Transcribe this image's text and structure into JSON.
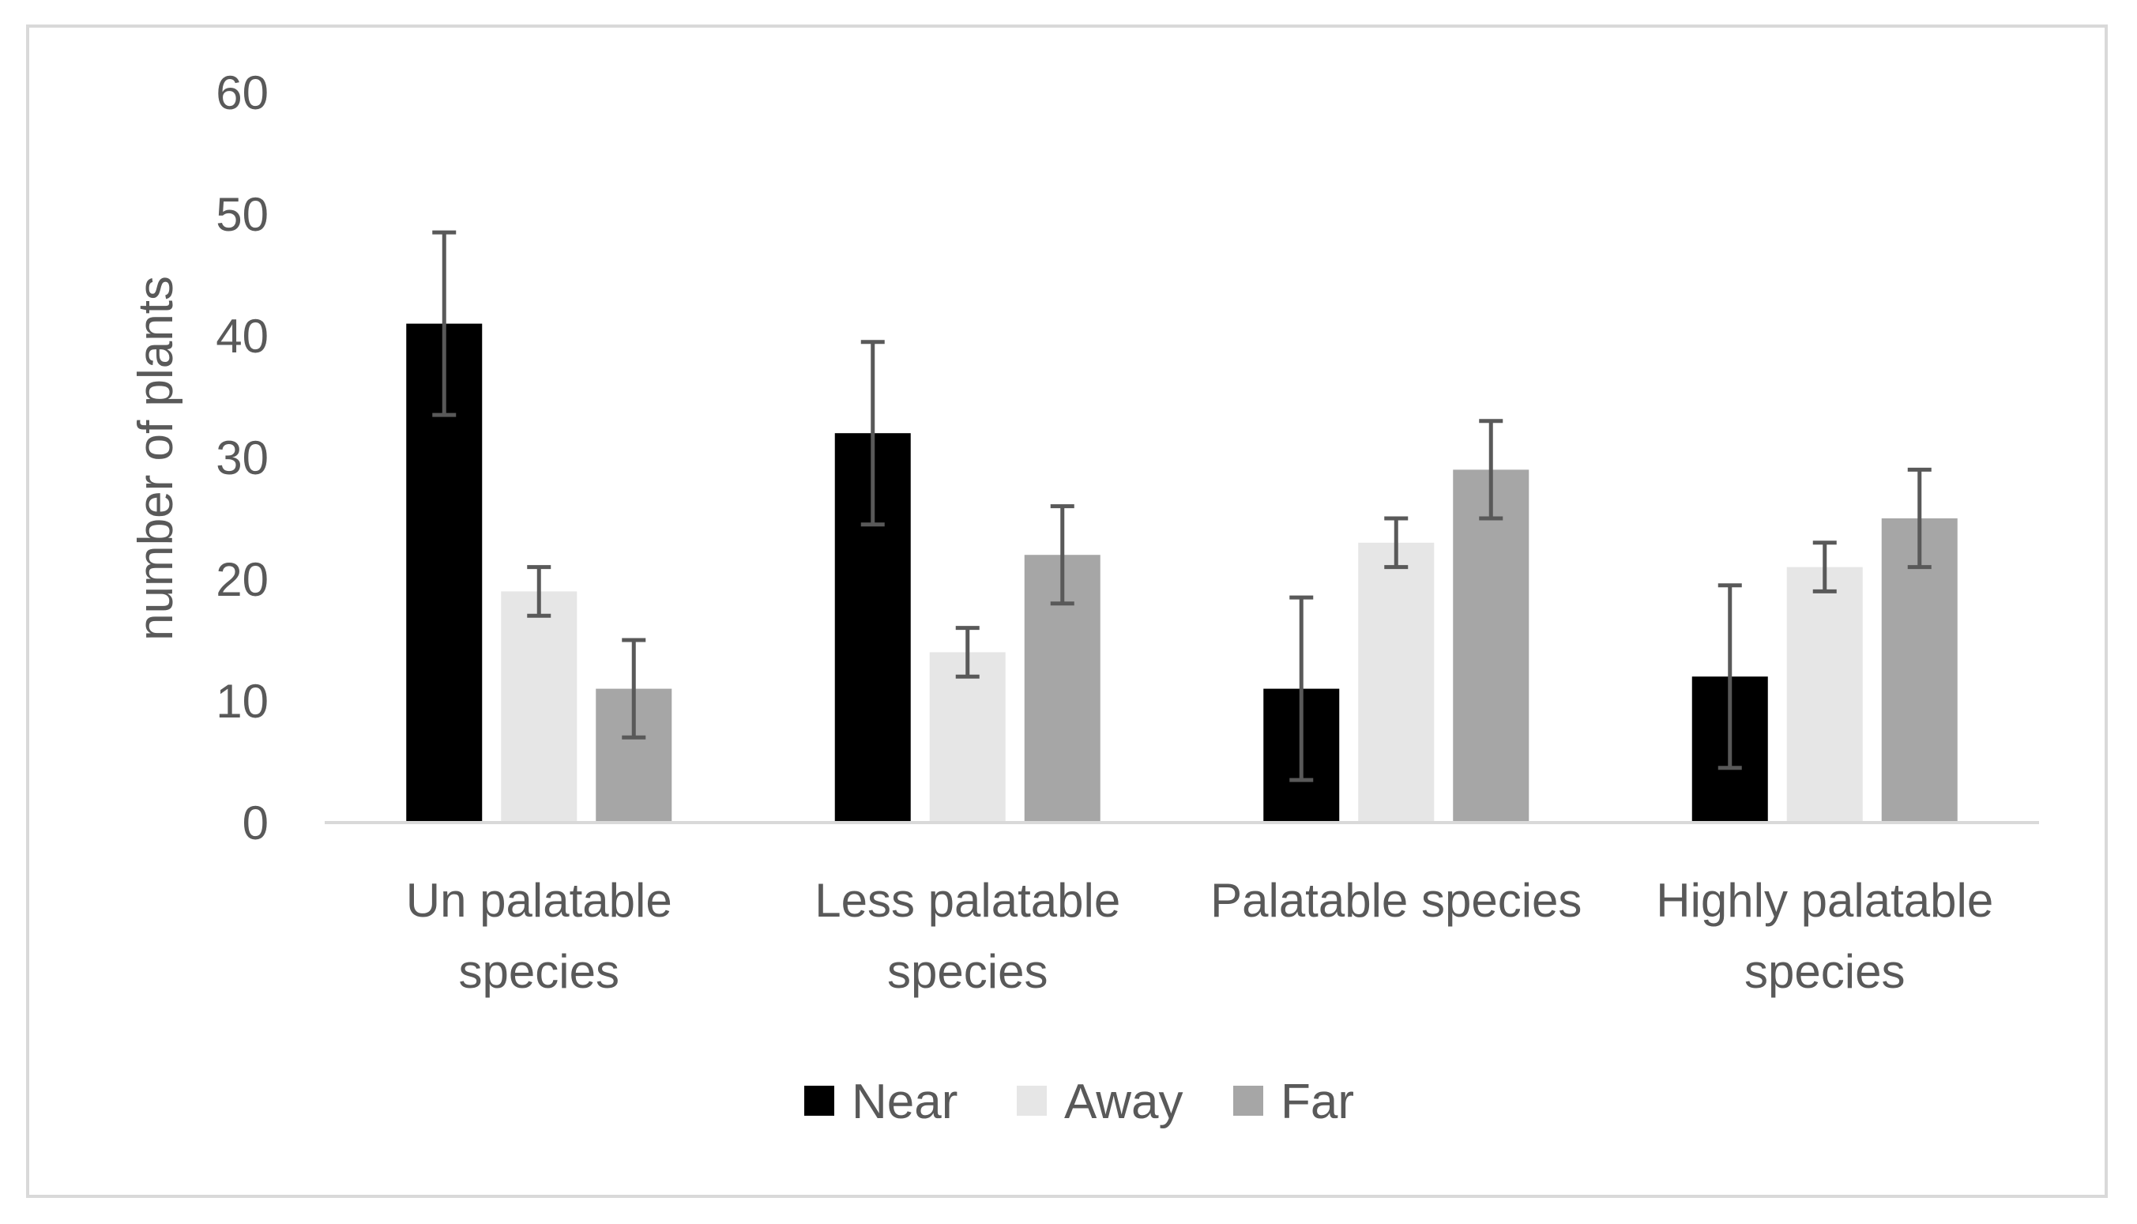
{
  "chart_data": {
    "type": "bar",
    "title": "",
    "xlabel": "",
    "ylabel": "number of plants",
    "ylim": [
      0,
      60
    ],
    "yticks": [
      0,
      10,
      20,
      30,
      40,
      50,
      60
    ],
    "grid": false,
    "legend_position": "bottom",
    "categories": [
      [
        "Un palatable",
        "species"
      ],
      [
        "Less palatable",
        "species"
      ],
      [
        "Palatable species"
      ],
      [
        "Highly palatable",
        "species"
      ]
    ],
    "series": [
      {
        "name": "Near",
        "color": "#000000",
        "values": [
          41,
          32,
          11,
          12
        ],
        "errors": [
          7.5,
          7.5,
          7.5,
          7.5
        ]
      },
      {
        "name": "Away",
        "color": "#e6e6e6",
        "values": [
          19,
          14,
          23,
          21
        ],
        "errors": [
          2,
          2,
          2,
          2
        ]
      },
      {
        "name": "Far",
        "color": "#a6a6a6",
        "values": [
          11,
          22,
          29,
          25
        ],
        "errors": [
          4,
          4,
          4,
          4
        ]
      }
    ]
  }
}
